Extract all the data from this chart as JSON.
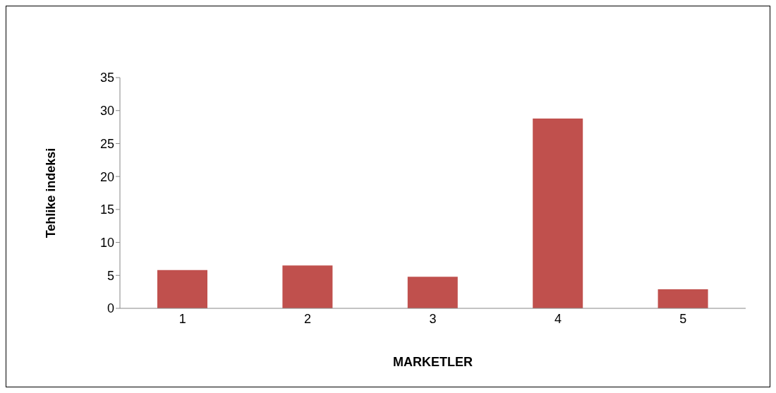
{
  "chart_data": {
    "type": "bar",
    "xlabel": "MARKETLER",
    "ylabel": "Tehlike indeksi",
    "categories": [
      "1",
      "2",
      "3",
      "4",
      "5"
    ],
    "values": [
      5.8,
      6.5,
      4.8,
      28.8,
      2.9
    ],
    "color": "#c0504d",
    "ylim": [
      0,
      35
    ],
    "yticks": [
      0,
      5,
      10,
      15,
      20,
      25,
      30,
      35
    ],
    "grid": false,
    "legend": false
  }
}
